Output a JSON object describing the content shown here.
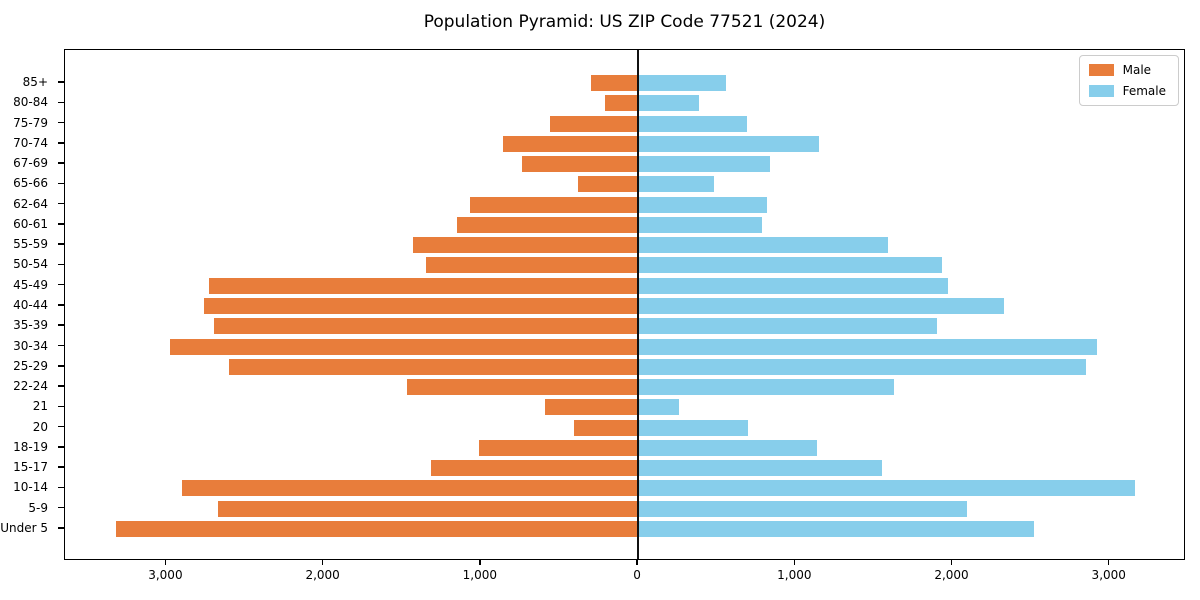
{
  "title": "Population Pyramid: US ZIP Code 77521 (2024)",
  "legend": {
    "items": [
      {
        "label": "Male",
        "color": "#E87D3B"
      },
      {
        "label": "Female",
        "color": "#87CEEB"
      }
    ]
  },
  "chart_data": {
    "type": "bar",
    "variant": "population-pyramid",
    "title": "Population Pyramid: US ZIP Code 77521 (2024)",
    "categories_top_to_bottom": [
      "85+",
      "80-84",
      "75-79",
      "70-74",
      "67-69",
      "65-66",
      "62-64",
      "60-61",
      "55-59",
      "50-54",
      "45-49",
      "40-44",
      "35-39",
      "30-34",
      "25-29",
      "22-24",
      "21",
      "20",
      "18-19",
      "15-17",
      "10-14",
      "5-9",
      "Under 5"
    ],
    "series": [
      {
        "name": "Male",
        "color": "#E87D3B",
        "direction": "left",
        "values": [
          300,
          210,
          560,
          860,
          740,
          380,
          1070,
          1150,
          1430,
          1350,
          2730,
          2760,
          2700,
          2980,
          2600,
          1470,
          590,
          410,
          1010,
          1320,
          2900,
          2670,
          3320
        ]
      },
      {
        "name": "Female",
        "color": "#87CEEB",
        "direction": "right",
        "values": [
          560,
          390,
          690,
          1150,
          840,
          480,
          820,
          790,
          1590,
          1930,
          1970,
          2330,
          1900,
          2920,
          2850,
          1630,
          260,
          700,
          1140,
          1550,
          3160,
          2090,
          2520
        ]
      }
    ],
    "xlabel": "",
    "ylabel": "",
    "x_tick_values": [
      -3000,
      -2000,
      -1000,
      0,
      1000,
      2000,
      3000
    ],
    "x_tick_labels": [
      "3,000",
      "2,000",
      "1,000",
      "0",
      "1,000",
      "2,000",
      "3,000"
    ],
    "xlim": [
      -3645,
      3485
    ],
    "grid": false,
    "legend_position": "upper right",
    "zero_line": true
  }
}
